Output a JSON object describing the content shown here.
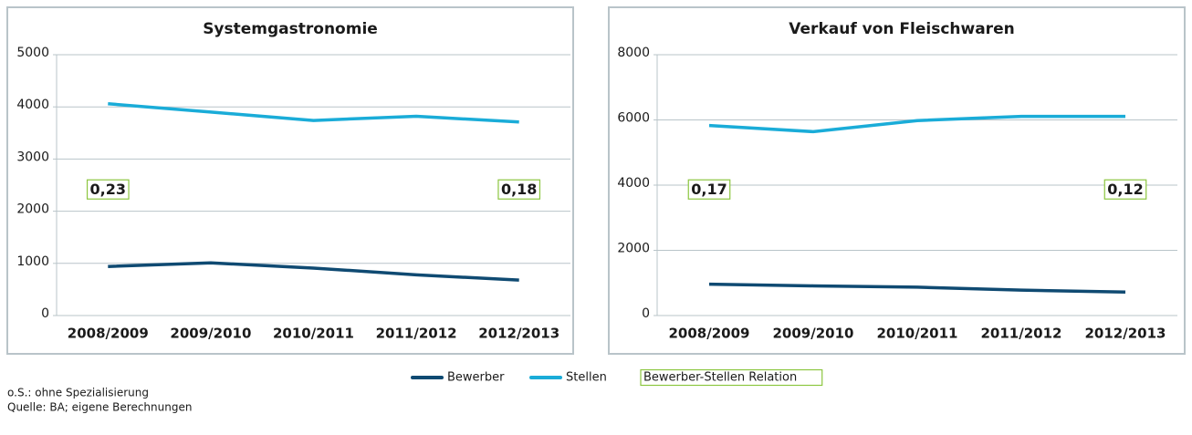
{
  "chart_data": [
    {
      "type": "line",
      "title": "Systemgastronomie",
      "categories": [
        "2008/2009",
        "2009/2010",
        "2010/2011",
        "2011/2012",
        "2012/2013"
      ],
      "series": [
        {
          "name": "Bewerber",
          "color": "#0f4a72",
          "values": [
            940,
            1010,
            910,
            780,
            680
          ]
        },
        {
          "name": "Stellen",
          "color": "#1aacd8",
          "values": [
            4060,
            3900,
            3740,
            3820,
            3710
          ]
        }
      ],
      "ylim": [
        0,
        5000
      ],
      "yticks": [
        0,
        1000,
        2000,
        3000,
        4000,
        5000
      ],
      "grid": true,
      "annotations": [
        "0,23",
        "0,18"
      ]
    },
    {
      "type": "line",
      "title": "Verkauf von Fleischwaren",
      "categories": [
        "2008/2009",
        "2009/2010",
        "2010/2011",
        "2011/2012",
        "2012/2013"
      ],
      "series": [
        {
          "name": "Bewerber",
          "color": "#0f4a72",
          "values": [
            960,
            910,
            870,
            780,
            720
          ]
        },
        {
          "name": "Stellen",
          "color": "#1aacd8",
          "values": [
            5830,
            5640,
            5980,
            6110,
            6110
          ]
        }
      ],
      "ylim": [
        0,
        8000
      ],
      "yticks": [
        0,
        2000,
        4000,
        6000,
        8000
      ],
      "grid": true,
      "annotations": [
        "0,17",
        "0,12"
      ]
    }
  ],
  "legend": {
    "annotation_label": "Bewerber-Stellen Relation",
    "annotation_color": "#8cc63f"
  },
  "notes": [
    "o.S.: ohne Spezialisierung",
    "Quelle: BA; eigene Berechnungen"
  ]
}
